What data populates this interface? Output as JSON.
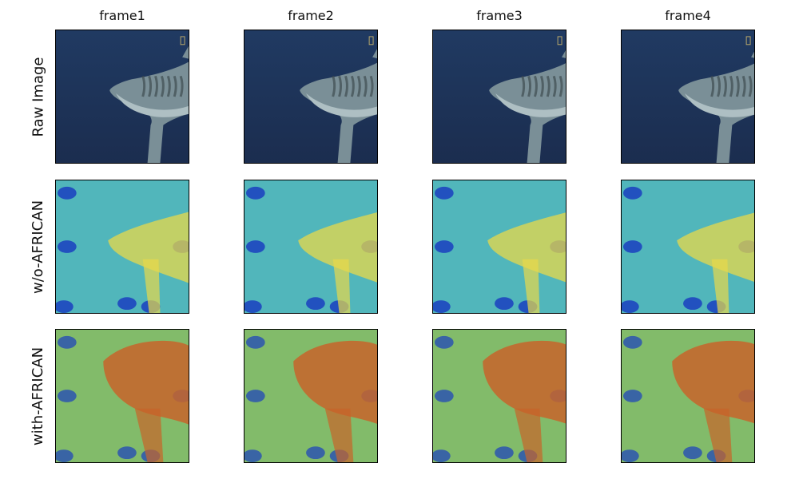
{
  "columns": [
    "frame1",
    "frame2",
    "frame3",
    "frame4"
  ],
  "rows": [
    "Raw Image",
    "w/o-AFRICAN",
    "with-AFRICAN"
  ],
  "colors": {
    "water": "#1b2d4f",
    "shark_body": "#7a8f97",
    "shark_belly": "#aebfc3",
    "heat_low": "#1a3fbf",
    "heat_mid": "#5fbfb4",
    "heat_high": "#c8642a"
  }
}
